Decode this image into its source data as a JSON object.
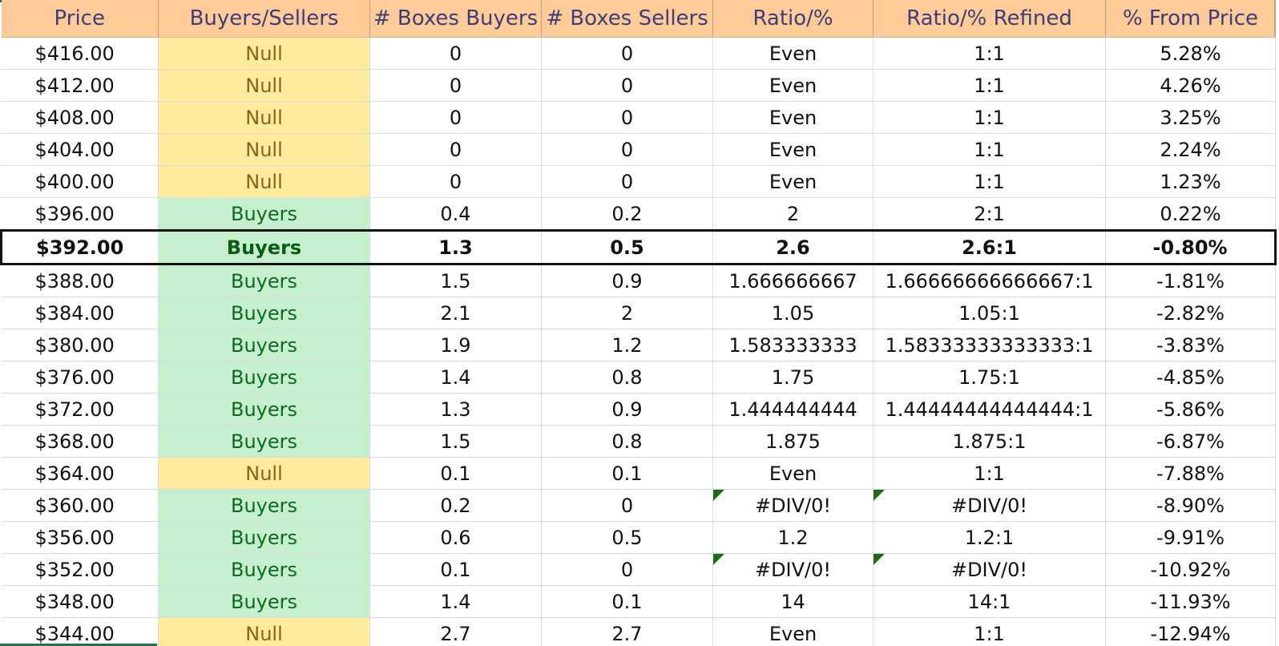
{
  "columns": [
    "Price",
    "Buyers/Sellers",
    "# Boxes Buyers",
    "# Boxes Sellers",
    "Ratio/%",
    "Ratio/% Refined",
    "% From Price"
  ],
  "rows": [
    {
      "price": "$416.00",
      "side": "Null",
      "boxes_buyers": "0",
      "boxes_sellers": "0",
      "ratio": "Even",
      "ratio_refined": "1:1",
      "from_price": "5.28%"
    },
    {
      "price": "$412.00",
      "side": "Null",
      "boxes_buyers": "0",
      "boxes_sellers": "0",
      "ratio": "Even",
      "ratio_refined": "1:1",
      "from_price": "4.26%"
    },
    {
      "price": "$408.00",
      "side": "Null",
      "boxes_buyers": "0",
      "boxes_sellers": "0",
      "ratio": "Even",
      "ratio_refined": "1:1",
      "from_price": "3.25%"
    },
    {
      "price": "$404.00",
      "side": "Null",
      "boxes_buyers": "0",
      "boxes_sellers": "0",
      "ratio": "Even",
      "ratio_refined": "1:1",
      "from_price": "2.24%"
    },
    {
      "price": "$400.00",
      "side": "Null",
      "boxes_buyers": "0",
      "boxes_sellers": "0",
      "ratio": "Even",
      "ratio_refined": "1:1",
      "from_price": "1.23%"
    },
    {
      "price": "$396.00",
      "side": "Buyers",
      "boxes_buyers": "0.4",
      "boxes_sellers": "0.2",
      "ratio": "2",
      "ratio_refined": "2:1",
      "from_price": "0.22%"
    },
    {
      "price": "$392.00",
      "side": "Buyers",
      "boxes_buyers": "1.3",
      "boxes_sellers": "0.5",
      "ratio": "2.6",
      "ratio_refined": "2.6:1",
      "from_price": "-0.80%",
      "current": true
    },
    {
      "price": "$388.00",
      "side": "Buyers",
      "boxes_buyers": "1.5",
      "boxes_sellers": "0.9",
      "ratio": "1.666666667",
      "ratio_refined": "1.66666666666667:1",
      "from_price": "-1.81%"
    },
    {
      "price": "$384.00",
      "side": "Buyers",
      "boxes_buyers": "2.1",
      "boxes_sellers": "2",
      "ratio": "1.05",
      "ratio_refined": "1.05:1",
      "from_price": "-2.82%"
    },
    {
      "price": "$380.00",
      "side": "Buyers",
      "boxes_buyers": "1.9",
      "boxes_sellers": "1.2",
      "ratio": "1.583333333",
      "ratio_refined": "1.58333333333333:1",
      "from_price": "-3.83%"
    },
    {
      "price": "$376.00",
      "side": "Buyers",
      "boxes_buyers": "1.4",
      "boxes_sellers": "0.8",
      "ratio": "1.75",
      "ratio_refined": "1.75:1",
      "from_price": "-4.85%"
    },
    {
      "price": "$372.00",
      "side": "Buyers",
      "boxes_buyers": "1.3",
      "boxes_sellers": "0.9",
      "ratio": "1.444444444",
      "ratio_refined": "1.44444444444444:1",
      "from_price": "-5.86%"
    },
    {
      "price": "$368.00",
      "side": "Buyers",
      "boxes_buyers": "1.5",
      "boxes_sellers": "0.8",
      "ratio": "1.875",
      "ratio_refined": "1.875:1",
      "from_price": "-6.87%"
    },
    {
      "price": "$364.00",
      "side": "Null",
      "boxes_buyers": "0.1",
      "boxes_sellers": "0.1",
      "ratio": "Even",
      "ratio_refined": "1:1",
      "from_price": "-7.88%"
    },
    {
      "price": "$360.00",
      "side": "Buyers",
      "boxes_buyers": "0.2",
      "boxes_sellers": "0",
      "ratio": "#DIV/0!",
      "ratio_refined": "#DIV/0!",
      "from_price": "-8.90%",
      "error": true
    },
    {
      "price": "$356.00",
      "side": "Buyers",
      "boxes_buyers": "0.6",
      "boxes_sellers": "0.5",
      "ratio": "1.2",
      "ratio_refined": "1.2:1",
      "from_price": "-9.91%"
    },
    {
      "price": "$352.00",
      "side": "Buyers",
      "boxes_buyers": "0.1",
      "boxes_sellers": "0",
      "ratio": "#DIV/0!",
      "ratio_refined": "#DIV/0!",
      "from_price": "-10.92%",
      "error": true
    },
    {
      "price": "$348.00",
      "side": "Buyers",
      "boxes_buyers": "1.4",
      "boxes_sellers": "0.1",
      "ratio": "14",
      "ratio_refined": "14:1",
      "from_price": "-11.93%"
    },
    {
      "price": "$344.00",
      "side": "Null",
      "boxes_buyers": "2.7",
      "boxes_sellers": "2.7",
      "ratio": "Even",
      "ratio_refined": "1:1",
      "from_price": "-12.94%"
    }
  ],
  "colors": {
    "header_bg": "#ffcc99",
    "header_text": "#3d3d7a",
    "null_bg": "#ffea9e",
    "null_text": "#8a6212",
    "buyers_bg": "#c6efce",
    "buyers_text": "#0b6b20",
    "error_indicator": "#1e6b1e",
    "selection": "#217346"
  }
}
